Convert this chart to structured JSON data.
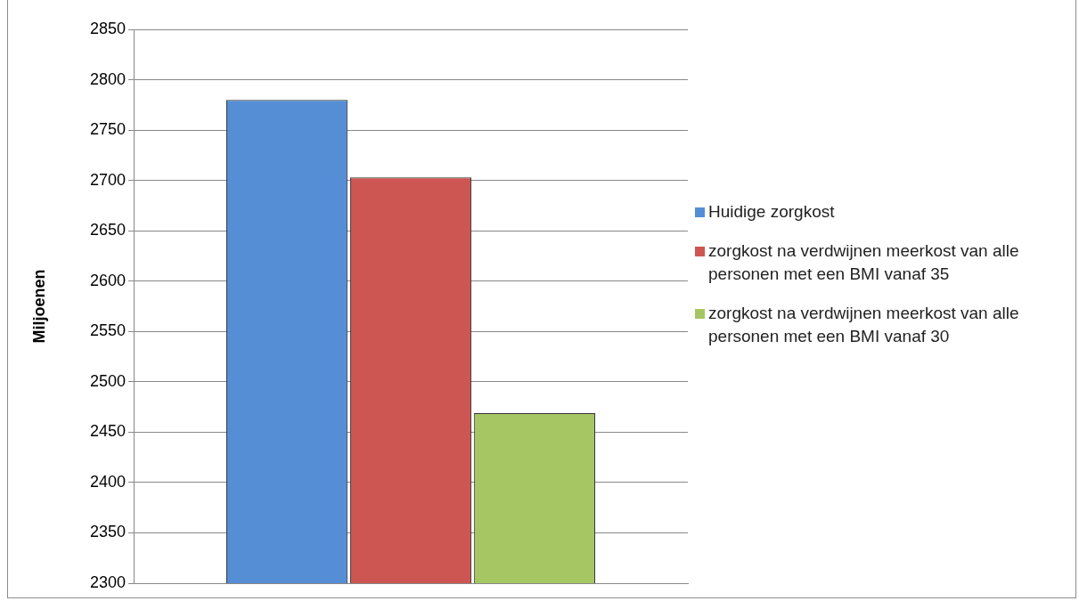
{
  "chart_data": {
    "type": "bar",
    "ylabel": "Miljoenen",
    "categories": [
      null
    ],
    "series": [
      {
        "name": "Huidige zorgkost",
        "color": "#558ed5",
        "values": [
          2780
        ]
      },
      {
        "name": "zorgkost na verdwijnen meerkost van alle personen met een BMI vanaf 35",
        "color": "#cd5652",
        "values": [
          2703
        ]
      },
      {
        "name": "zorgkost na verdwijnen meerkost van alle personen met een BMI vanaf 30",
        "color": "#a5c662",
        "values": [
          2469
        ]
      }
    ],
    "ylim": [
      2300,
      2850
    ],
    "yticks": [
      2300,
      2350,
      2400,
      2450,
      2500,
      2550,
      2600,
      2650,
      2700,
      2750,
      2800,
      2850
    ],
    "grid": "y",
    "legend": "right",
    "tick_labels": "y"
  }
}
